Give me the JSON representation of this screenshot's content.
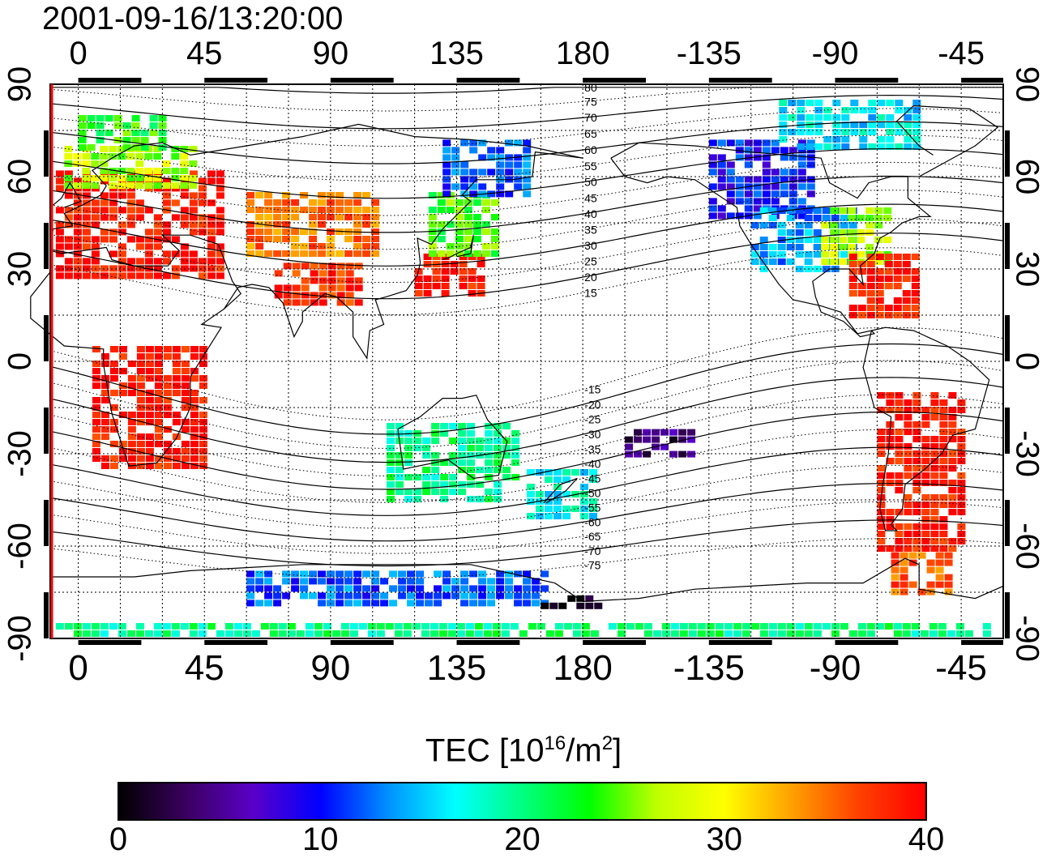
{
  "title": "2001-09-16/13:20:00",
  "axes": {
    "lon_labels_top": [
      "0",
      "45",
      "90",
      "135",
      "180",
      "-135",
      "-90",
      "-45"
    ],
    "lon_labels_bottom": [
      "0",
      "45",
      "90",
      "135",
      "180",
      "-135",
      "-90",
      "-45"
    ],
    "lat_labels_left": [
      "90",
      "60",
      "30",
      "0",
      "-30",
      "-60",
      "-90"
    ],
    "lat_labels_right": [
      "90",
      "60",
      "30",
      "0",
      "-30",
      "-60",
      "-90"
    ],
    "lon_values": [
      0,
      45,
      90,
      135,
      180,
      225,
      270,
      315
    ],
    "lat_values": [
      90,
      60,
      30,
      0,
      -30,
      -60,
      -90
    ],
    "lon_range": [
      -10,
      330
    ],
    "lat_range": [
      -90,
      90
    ],
    "grid": true
  },
  "contour_labels": [
    "80",
    "75",
    "70",
    "65",
    "60",
    "55",
    "50",
    "45",
    "40",
    "35",
    "30",
    "25",
    "20",
    "15",
    "-15",
    "-20",
    "-25",
    "-30",
    "-35",
    "-40",
    "-45",
    "-50",
    "-55",
    "-60",
    "-65",
    "-70",
    "-75"
  ],
  "contour_label_lats": [
    80,
    75,
    70,
    65,
    60,
    55,
    50,
    45,
    40,
    35,
    30,
    25,
    20,
    15,
    -15,
    -20,
    -25,
    -30,
    -35,
    -40,
    -45,
    -50,
    -55,
    -60,
    -65,
    -70,
    -75
  ],
  "colorbar": {
    "title_prefix": "TEC  [10",
    "title_exp1": "16",
    "title_mid": "/m",
    "title_exp2": "2",
    "title_suffix": "]",
    "ticks": [
      "0",
      "10",
      "20",
      "30",
      "40"
    ],
    "tick_values": [
      0,
      10,
      20,
      30,
      40
    ],
    "range": [
      0,
      40
    ],
    "colors": [
      "#000000",
      "#3a005e",
      "#5a00c8",
      "#0000ff",
      "#0090ff",
      "#00ffff",
      "#00ff80",
      "#00ff00",
      "#c0ff00",
      "#ffff00",
      "#ffa000",
      "#ff4000",
      "#ff0000"
    ]
  },
  "tec_regions": [
    {
      "lon": [
        -8,
        50
      ],
      "lat": [
        28,
        62
      ],
      "value": 39
    },
    {
      "lon": [
        -5,
        40
      ],
      "lat": [
        58,
        70
      ],
      "value": 27
    },
    {
      "lon": [
        0,
        30
      ],
      "lat": [
        70,
        80
      ],
      "value": 23
    },
    {
      "lon": [
        60,
        105
      ],
      "lat": [
        35,
        55
      ],
      "value": 35
    },
    {
      "lon": [
        70,
        100
      ],
      "lat": [
        20,
        32
      ],
      "value": 38
    },
    {
      "lon": [
        120,
        145
      ],
      "lat": [
        22,
        35
      ],
      "value": 39
    },
    {
      "lon": [
        125,
        150
      ],
      "lat": [
        35,
        55
      ],
      "value": 24
    },
    {
      "lon": [
        130,
        160
      ],
      "lat": [
        55,
        72
      ],
      "value": 12
    },
    {
      "lon": [
        5,
        45
      ],
      "lat": [
        -35,
        5
      ],
      "value": 39
    },
    {
      "lon": [
        110,
        155
      ],
      "lat": [
        -45,
        -20
      ],
      "value": 20
    },
    {
      "lon": [
        160,
        185
      ],
      "lat": [
        -50,
        -35
      ],
      "value": 17
    },
    {
      "lon": [
        225,
        260
      ],
      "lat": [
        48,
        72
      ],
      "value": 10
    },
    {
      "lon": [
        240,
        275
      ],
      "lat": [
        30,
        50
      ],
      "value": 14
    },
    {
      "lon": [
        265,
        290
      ],
      "lat": [
        32,
        50
      ],
      "value": 27
    },
    {
      "lon": [
        275,
        300
      ],
      "lat": [
        15,
        35
      ],
      "value": 39
    },
    {
      "lon": [
        285,
        315
      ],
      "lat": [
        -60,
        -10
      ],
      "value": 39
    },
    {
      "lon": [
        290,
        310
      ],
      "lat": [
        -75,
        -62
      ],
      "value": 36
    },
    {
      "lon": [
        250,
        300
      ],
      "lat": [
        70,
        85
      ],
      "value": 16
    },
    {
      "lon": [
        60,
        165
      ],
      "lat": [
        -78,
        -68
      ],
      "value": 12
    },
    {
      "lon": [
        165,
        185
      ],
      "lat": [
        -80,
        -76
      ],
      "value": 1
    },
    {
      "lon": [
        195,
        220
      ],
      "lat": [
        -30,
        -22
      ],
      "value": 4
    },
    {
      "lon": [
        -8,
        325
      ],
      "lat": [
        -89,
        -85
      ],
      "value": 20
    }
  ]
}
